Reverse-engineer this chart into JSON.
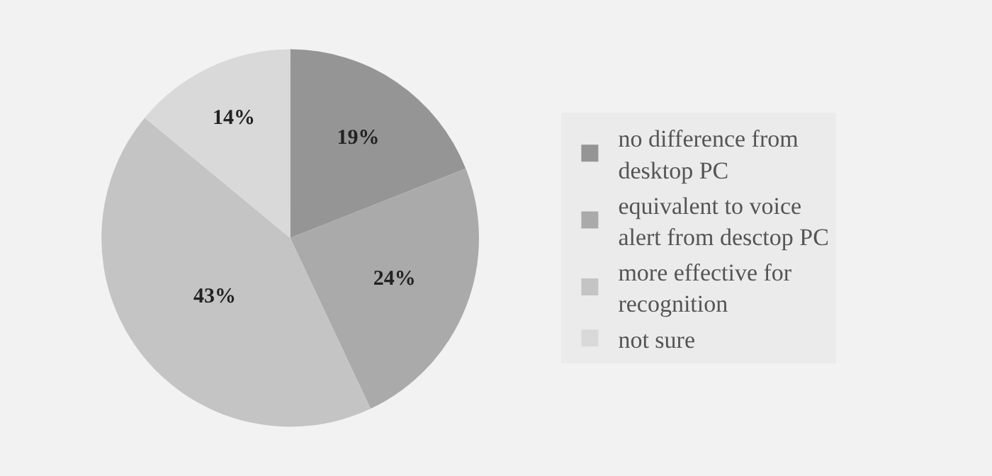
{
  "chart_data": {
    "type": "pie",
    "categories": [
      "no difference from desktop PC",
      "equivalent to voice alert from desctop PC",
      "more effective for recognition",
      "not sure"
    ],
    "values": [
      19,
      24,
      43,
      14
    ],
    "value_labels": [
      "19%",
      "24%",
      "43%",
      "14%"
    ],
    "colors": [
      "#959595",
      "#aaaaaa",
      "#c4c4c4",
      "#d9d9d9"
    ],
    "legend": "right"
  }
}
